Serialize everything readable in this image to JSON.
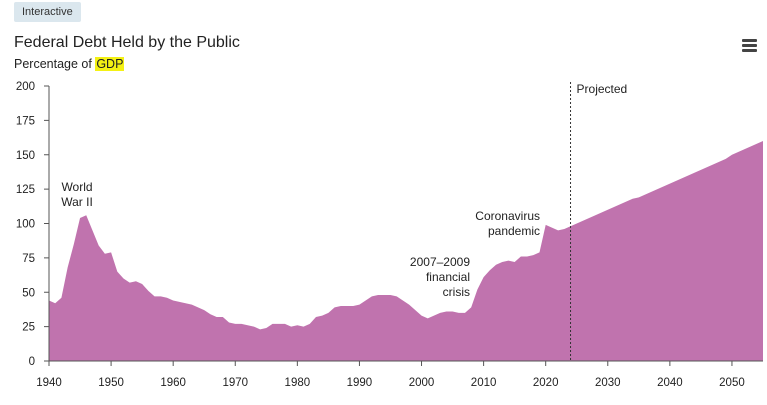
{
  "badge": "Interactive",
  "menu_icon": "hamburger-menu-icon",
  "chart_data": {
    "type": "area",
    "title": "Federal Debt Held by the Public",
    "subtitle_prefix": "Percentage of ",
    "subtitle_highlight": "GDP",
    "xlabel": "",
    "ylabel": "",
    "xlim": [
      1940,
      2055
    ],
    "ylim": [
      0,
      200
    ],
    "x_ticks": [
      1940,
      1950,
      1960,
      1970,
      1980,
      1990,
      2000,
      2010,
      2020,
      2030,
      2040,
      2050
    ],
    "y_ticks": [
      0,
      25,
      50,
      75,
      100,
      125,
      150,
      175,
      200
    ],
    "grid": false,
    "fill_color": "#c073ae",
    "projection_start": 2024,
    "projection_label": "Projected",
    "annotations": [
      {
        "lines": [
          "World",
          "War II"
        ],
        "x": 1946,
        "y": 106
      },
      {
        "lines": [
          "Coronavirus",
          "pandemic"
        ],
        "x": 2020,
        "y": 99
      },
      {
        "lines": [
          "2007–2009",
          "financial",
          "crisis"
        ],
        "x": 2009,
        "y": 52
      }
    ],
    "series": [
      {
        "x": [
          1940,
          1941,
          1942,
          1943,
          1944,
          1945,
          1946,
          1947,
          1948,
          1949,
          1950,
          1951,
          1952,
          1953,
          1954,
          1955,
          1956,
          1957,
          1958,
          1959,
          1960,
          1961,
          1962,
          1963,
          1964,
          1965,
          1966,
          1967,
          1968,
          1969,
          1970,
          1971,
          1972,
          1973,
          1974,
          1975,
          1976,
          1977,
          1978,
          1979,
          1980,
          1981,
          1982,
          1983,
          1984,
          1985,
          1986,
          1987,
          1988,
          1989,
          1990,
          1991,
          1992,
          1993,
          1994,
          1995,
          1996,
          1997,
          1998,
          1999,
          2000,
          2001,
          2002,
          2003,
          2004,
          2005,
          2006,
          2007,
          2008,
          2009,
          2010,
          2011,
          2012,
          2013,
          2014,
          2015,
          2016,
          2017,
          2018,
          2019,
          2020,
          2021,
          2022,
          2023,
          2024,
          2025,
          2026,
          2027,
          2028,
          2029,
          2030,
          2031,
          2032,
          2033,
          2034,
          2035,
          2036,
          2037,
          2038,
          2039,
          2040,
          2041,
          2042,
          2043,
          2044,
          2045,
          2046,
          2047,
          2048,
          2049,
          2050,
          2051,
          2052,
          2053,
          2054,
          2055
        ],
        "values": [
          44,
          42,
          46,
          68,
          85,
          104,
          106,
          95,
          84,
          78,
          79,
          65,
          60,
          57,
          58,
          56,
          51,
          47,
          47,
          46,
          44,
          43,
          42,
          41,
          39,
          37,
          34,
          32,
          32,
          28,
          27,
          27,
          26,
          25,
          23,
          24,
          27,
          27,
          27,
          25,
          26,
          25,
          27,
          32,
          33,
          35,
          39,
          40,
          40,
          40,
          41,
          44,
          47,
          48,
          48,
          48,
          47,
          44,
          41,
          37,
          33,
          31,
          33,
          35,
          36,
          36,
          35,
          35,
          39,
          52,
          61,
          66,
          70,
          72,
          73,
          72,
          76,
          76,
          77,
          79,
          99,
          97,
          95,
          96,
          98,
          100,
          102,
          104,
          106,
          108,
          110,
          112,
          114,
          116,
          118,
          119,
          121,
          123,
          125,
          127,
          129,
          131,
          133,
          135,
          137,
          139,
          141,
          143,
          145,
          147,
          150,
          152,
          154,
          156,
          158,
          160
        ]
      }
    ]
  }
}
